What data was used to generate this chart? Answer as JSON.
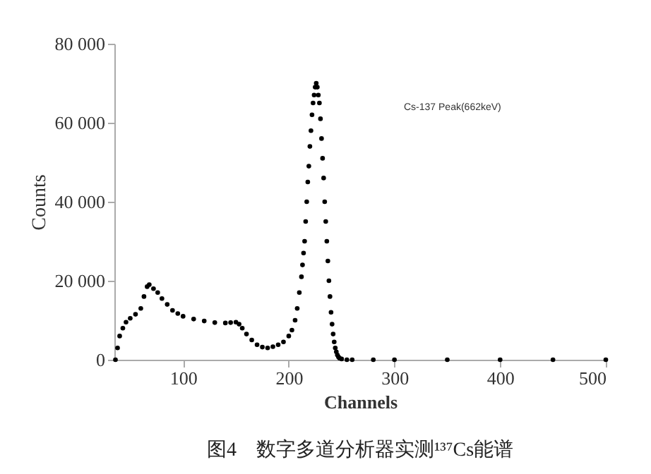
{
  "chart_data": {
    "type": "scatter",
    "title": "图4　数字多道分析器实测¹³⁷Cs能谱",
    "xlabel": "Channels",
    "ylabel": "Counts",
    "x": [
      36,
      38,
      40,
      43,
      46,
      50,
      55,
      60,
      63,
      66,
      68,
      72,
      76,
      80,
      85,
      90,
      95,
      100,
      110,
      120,
      130,
      140,
      145,
      150,
      153,
      156,
      160,
      165,
      170,
      175,
      180,
      185,
      190,
      195,
      200,
      203,
      206,
      208,
      210,
      212,
      213,
      214,
      215,
      216,
      217,
      218,
      219,
      220,
      221,
      222,
      223,
      224,
      225,
      226,
      227,
      228,
      229,
      230,
      231,
      232,
      233,
      234,
      235,
      236,
      237,
      238,
      239,
      240,
      241,
      242,
      243,
      244,
      245,
      246,
      247,
      248,
      250,
      255,
      260,
      280,
      300,
      350,
      400,
      450,
      500
    ],
    "values": [
      0,
      3000,
      6000,
      8000,
      9500,
      10500,
      11500,
      13000,
      16000,
      18500,
      19000,
      18000,
      17000,
      15500,
      14000,
      12500,
      11700,
      11000,
      10300,
      9800,
      9400,
      9300,
      9400,
      9500,
      9000,
      8000,
      6500,
      5000,
      3800,
      3200,
      3000,
      3300,
      3800,
      4500,
      6000,
      7500,
      10000,
      13000,
      17000,
      21000,
      24000,
      27000,
      30000,
      35000,
      40000,
      45000,
      49000,
      54000,
      58000,
      62000,
      65000,
      67000,
      69000,
      70000,
      69000,
      67000,
      65000,
      61000,
      56000,
      51000,
      46000,
      40000,
      35000,
      30000,
      25000,
      20000,
      16000,
      12000,
      9000,
      6500,
      4500,
      3000,
      2000,
      1200,
      700,
      400,
      200,
      0,
      0,
      0,
      0,
      0,
      0,
      0,
      0
    ],
    "color": "#000000",
    "marker": "circle",
    "xlim": [
      35,
      500
    ],
    "xticks": [
      100,
      200,
      300,
      400,
      500
    ],
    "ylim": [
      0,
      80000
    ],
    "yticks": [
      {
        "value": 0,
        "label": "0"
      },
      {
        "value": 20000,
        "label": "20 000"
      },
      {
        "value": 40000,
        "label": "40 000"
      },
      {
        "value": 60000,
        "label": "60 000"
      },
      {
        "value": 80000,
        "label": "80 000"
      }
    ],
    "grid": false,
    "annotations": [
      "Cs-137 Peak(662keV)"
    ]
  }
}
